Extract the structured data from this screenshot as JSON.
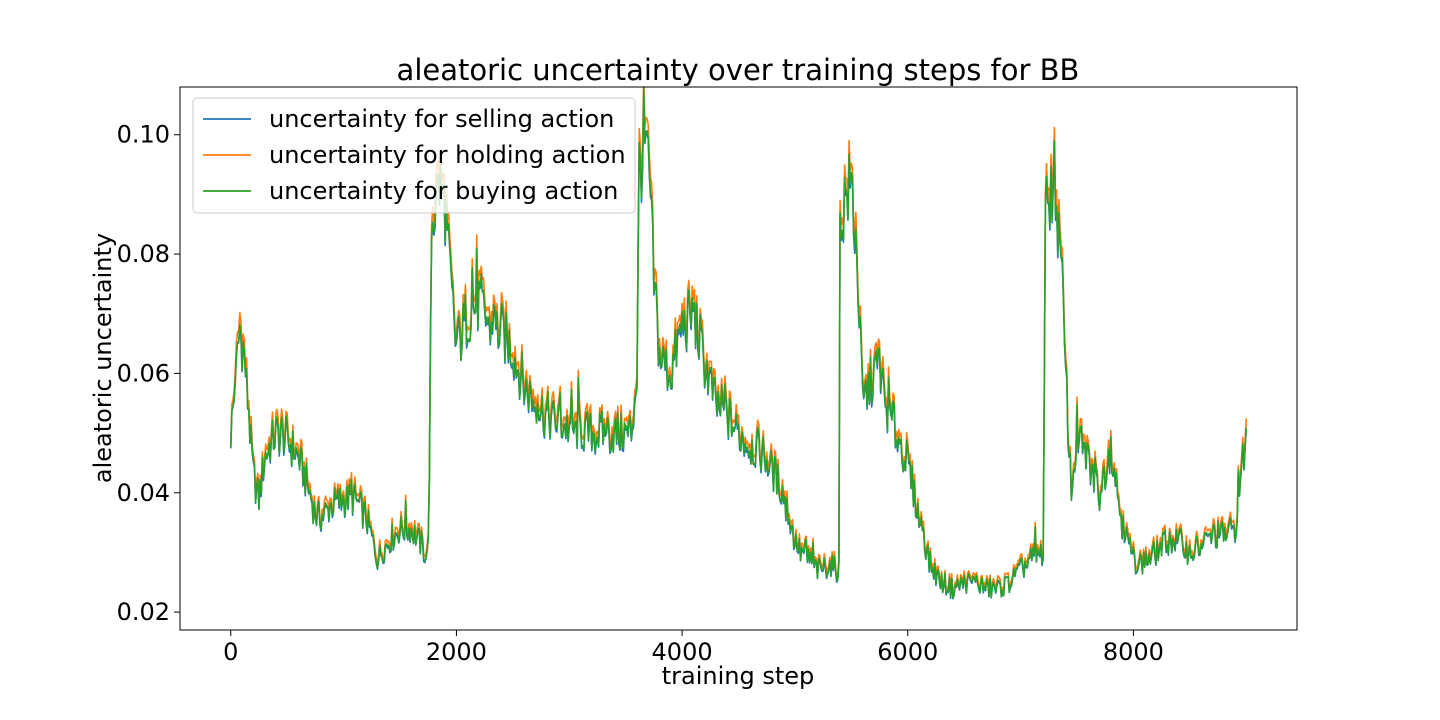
{
  "chart_data": {
    "type": "line",
    "title": "aleatoric uncertainty over training steps for BB",
    "xlabel": "training step",
    "ylabel": "aleatoric uncertainty",
    "xlim": [
      -450,
      9450
    ],
    "ylim": [
      0.017,
      0.108
    ],
    "xticks": [
      0,
      2000,
      4000,
      6000,
      8000
    ],
    "xtick_labels": [
      "0",
      "2000",
      "4000",
      "6000",
      "8000"
    ],
    "yticks": [
      0.02,
      0.04,
      0.06,
      0.08,
      0.1
    ],
    "ytick_labels": [
      "0.02",
      "0.04",
      "0.06",
      "0.08",
      "0.10"
    ],
    "grid": false,
    "legend_position": "upper-left",
    "x_max": 9000,
    "colors": {
      "selling": "#1f77b4",
      "holding": "#ff7f0e",
      "buying": "#2ca02c"
    },
    "trend_x": [
      0,
      40,
      80,
      120,
      200,
      250,
      300,
      400,
      500,
      600,
      700,
      760,
      800,
      900,
      1000,
      1100,
      1200,
      1300,
      1400,
      1500,
      1600,
      1700,
      1740,
      1760,
      1780,
      1850,
      1900,
      1950,
      2000,
      2100,
      2200,
      2300,
      2400,
      2500,
      2600,
      2700,
      2800,
      3000,
      3200,
      3400,
      3550,
      3600,
      3620,
      3680,
      3720,
      3750,
      3800,
      3900,
      4000,
      4100,
      4200,
      4300,
      4400,
      4500,
      4600,
      4700,
      4800,
      4900,
      5000,
      5050,
      5100,
      5200,
      5300,
      5390,
      5400,
      5450,
      5500,
      5550,
      5600,
      5700,
      5750,
      5800,
      5900,
      6000,
      6100,
      6200,
      6300,
      6400,
      6500,
      6600,
      6700,
      6800,
      6900,
      7000,
      7100,
      7200,
      7220,
      7250,
      7300,
      7350,
      7400,
      7450,
      7500,
      7600,
      7700,
      7800,
      7900,
      8000,
      8100,
      8200,
      8300,
      8400,
      8500,
      8600,
      8700,
      8800,
      8900,
      9000
    ],
    "trend_y": [
      0.05,
      0.058,
      0.068,
      0.063,
      0.043,
      0.039,
      0.046,
      0.05,
      0.049,
      0.046,
      0.04,
      0.036,
      0.036,
      0.038,
      0.039,
      0.039,
      0.036,
      0.029,
      0.032,
      0.034,
      0.034,
      0.031,
      0.029,
      0.04,
      0.085,
      0.092,
      0.088,
      0.075,
      0.064,
      0.07,
      0.072,
      0.068,
      0.067,
      0.064,
      0.058,
      0.055,
      0.053,
      0.051,
      0.05,
      0.05,
      0.05,
      0.06,
      0.095,
      0.098,
      0.09,
      0.075,
      0.063,
      0.06,
      0.068,
      0.07,
      0.062,
      0.055,
      0.053,
      0.05,
      0.048,
      0.047,
      0.044,
      0.04,
      0.032,
      0.03,
      0.03,
      0.027,
      0.028,
      0.027,
      0.085,
      0.09,
      0.092,
      0.08,
      0.055,
      0.06,
      0.062,
      0.055,
      0.05,
      0.045,
      0.036,
      0.028,
      0.025,
      0.024,
      0.025,
      0.025,
      0.024,
      0.024,
      0.025,
      0.027,
      0.029,
      0.03,
      0.085,
      0.09,
      0.093,
      0.08,
      0.06,
      0.04,
      0.05,
      0.045,
      0.04,
      0.048,
      0.035,
      0.029,
      0.028,
      0.03,
      0.032,
      0.032,
      0.03,
      0.031,
      0.033,
      0.033,
      0.034,
      0.05
    ],
    "series": [
      {
        "name": "uncertainty for selling action",
        "key": "selling",
        "offset": -0.0003
      },
      {
        "name": "uncertainty for holding action",
        "key": "holding",
        "offset": 0.0012
      },
      {
        "name": "uncertainty for buying action",
        "key": "buying",
        "offset": 0.0
      }
    ]
  }
}
